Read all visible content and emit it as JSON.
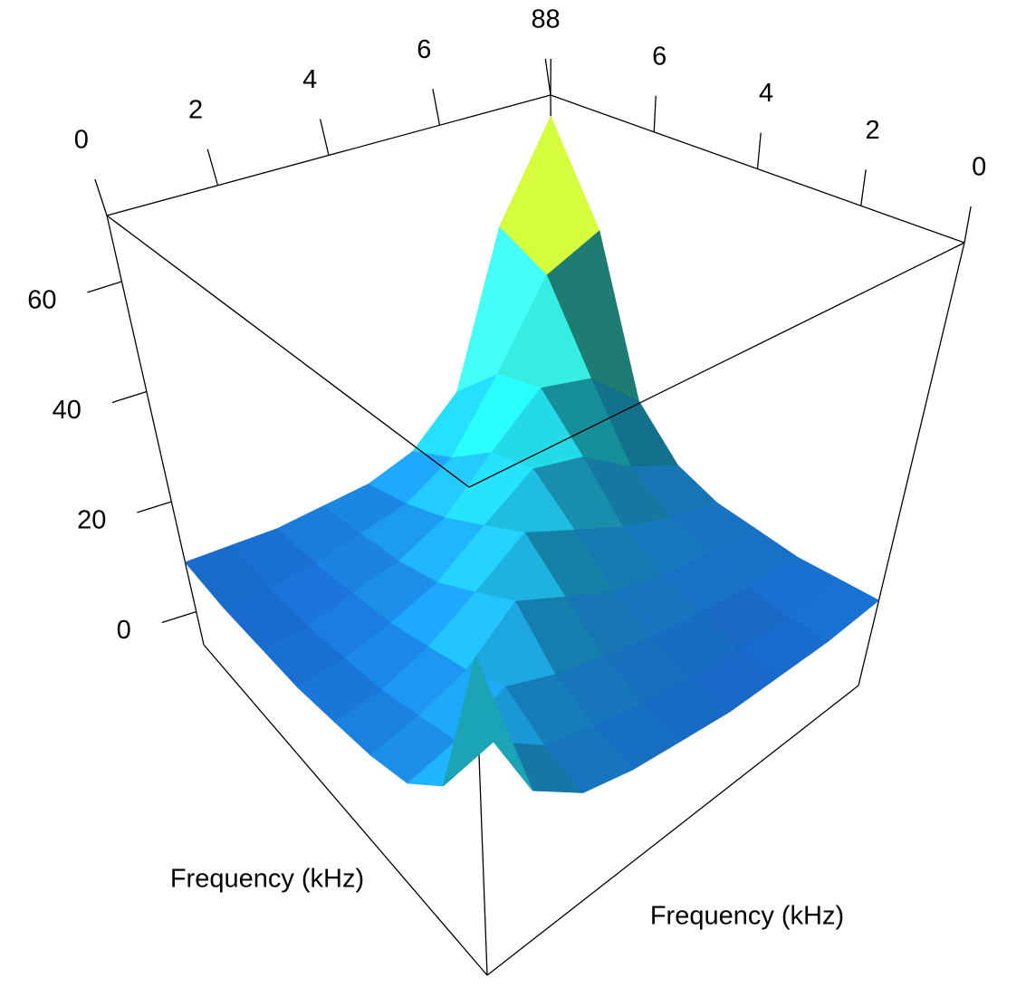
{
  "chart_data": {
    "type": "surface",
    "xlabel": "Frequency (kHz)",
    "ylabel": "Frequency (kHz)",
    "xlim": [
      0,
      8
    ],
    "ylim": [
      0,
      8
    ],
    "zlim": [
      -6,
      72
    ],
    "xticks": [
      0,
      2,
      4,
      6,
      8
    ],
    "yticks": [
      0,
      2,
      4,
      6,
      8
    ],
    "zticks": [
      0,
      20,
      40,
      60
    ],
    "x": [
      0,
      1,
      2,
      3,
      4,
      5,
      6,
      7,
      8
    ],
    "y": [
      0,
      1,
      2,
      3,
      4,
      5,
      6,
      7,
      8
    ],
    "z": [
      [
        45,
        18,
        12,
        10,
        9,
        8,
        8,
        8,
        9
      ],
      [
        18,
        20,
        14,
        12,
        10,
        9,
        8,
        8,
        9
      ],
      [
        12,
        14,
        18,
        15,
        13,
        11,
        10,
        9,
        9
      ],
      [
        10,
        12,
        15,
        22,
        18,
        14,
        12,
        11,
        10
      ],
      [
        9,
        10,
        13,
        18,
        24,
        20,
        16,
        13,
        11
      ],
      [
        8,
        9,
        11,
        14,
        20,
        26,
        24,
        18,
        14
      ],
      [
        8,
        8,
        10,
        12,
        16,
        24,
        32,
        30,
        22
      ],
      [
        8,
        8,
        9,
        11,
        13,
        18,
        30,
        45,
        50
      ],
      [
        9,
        9,
        9,
        10,
        11,
        14,
        22,
        50,
        68
      ]
    ],
    "colormap": [
      "#1840c0",
      "#1a90d8",
      "#22d8e0",
      "#40d8b8",
      "#c8d820",
      "#e8b800"
    ]
  }
}
